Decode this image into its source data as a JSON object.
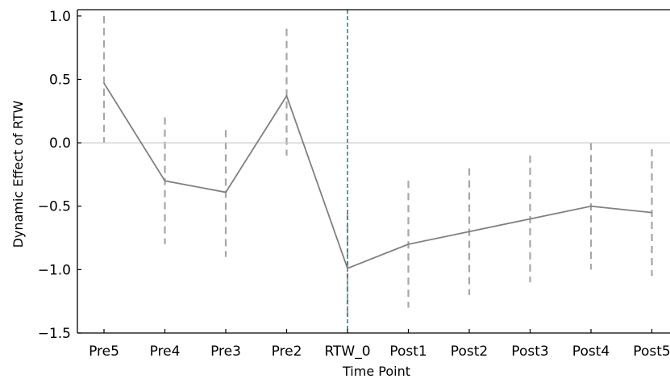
{
  "chart_data": {
    "type": "line",
    "title": "",
    "xlabel": "Time Point",
    "ylabel": "Dynamic Effect of RTW",
    "categories": [
      "Pre5",
      "Pre4",
      "Pre3",
      "Pre2",
      "RTW_0",
      "Post1",
      "Post2",
      "Post3",
      "Post4",
      "Post5"
    ],
    "values": [
      0.47,
      -0.3,
      -0.39,
      0.37,
      -0.99,
      -0.8,
      -0.7,
      -0.6,
      -0.5,
      -0.55
    ],
    "ci_lower": [
      0.0,
      -0.8,
      -0.9,
      -0.1,
      -1.38,
      -1.3,
      -1.2,
      -1.1,
      -1.0,
      -1.05
    ],
    "ci_upper": [
      1.0,
      0.2,
      0.1,
      0.9,
      -0.55,
      -0.3,
      -0.2,
      -0.1,
      0.0,
      -0.05
    ],
    "ylim": [
      -1.5,
      1.05
    ],
    "yticks": [
      1.0,
      0.5,
      0.0,
      -0.5,
      -1.0,
      -1.5
    ],
    "ytick_labels": [
      "1.0",
      "0.5",
      "0.0",
      "−0.5",
      "−1.0",
      "−1.5"
    ],
    "zero_line": 0.0,
    "event_category": "RTW_0",
    "grid": false,
    "colors": {
      "line": "#808080",
      "ci": "#a6a6a6",
      "zero_line": "#cccccc",
      "event_line": "#1f8a9a"
    }
  }
}
